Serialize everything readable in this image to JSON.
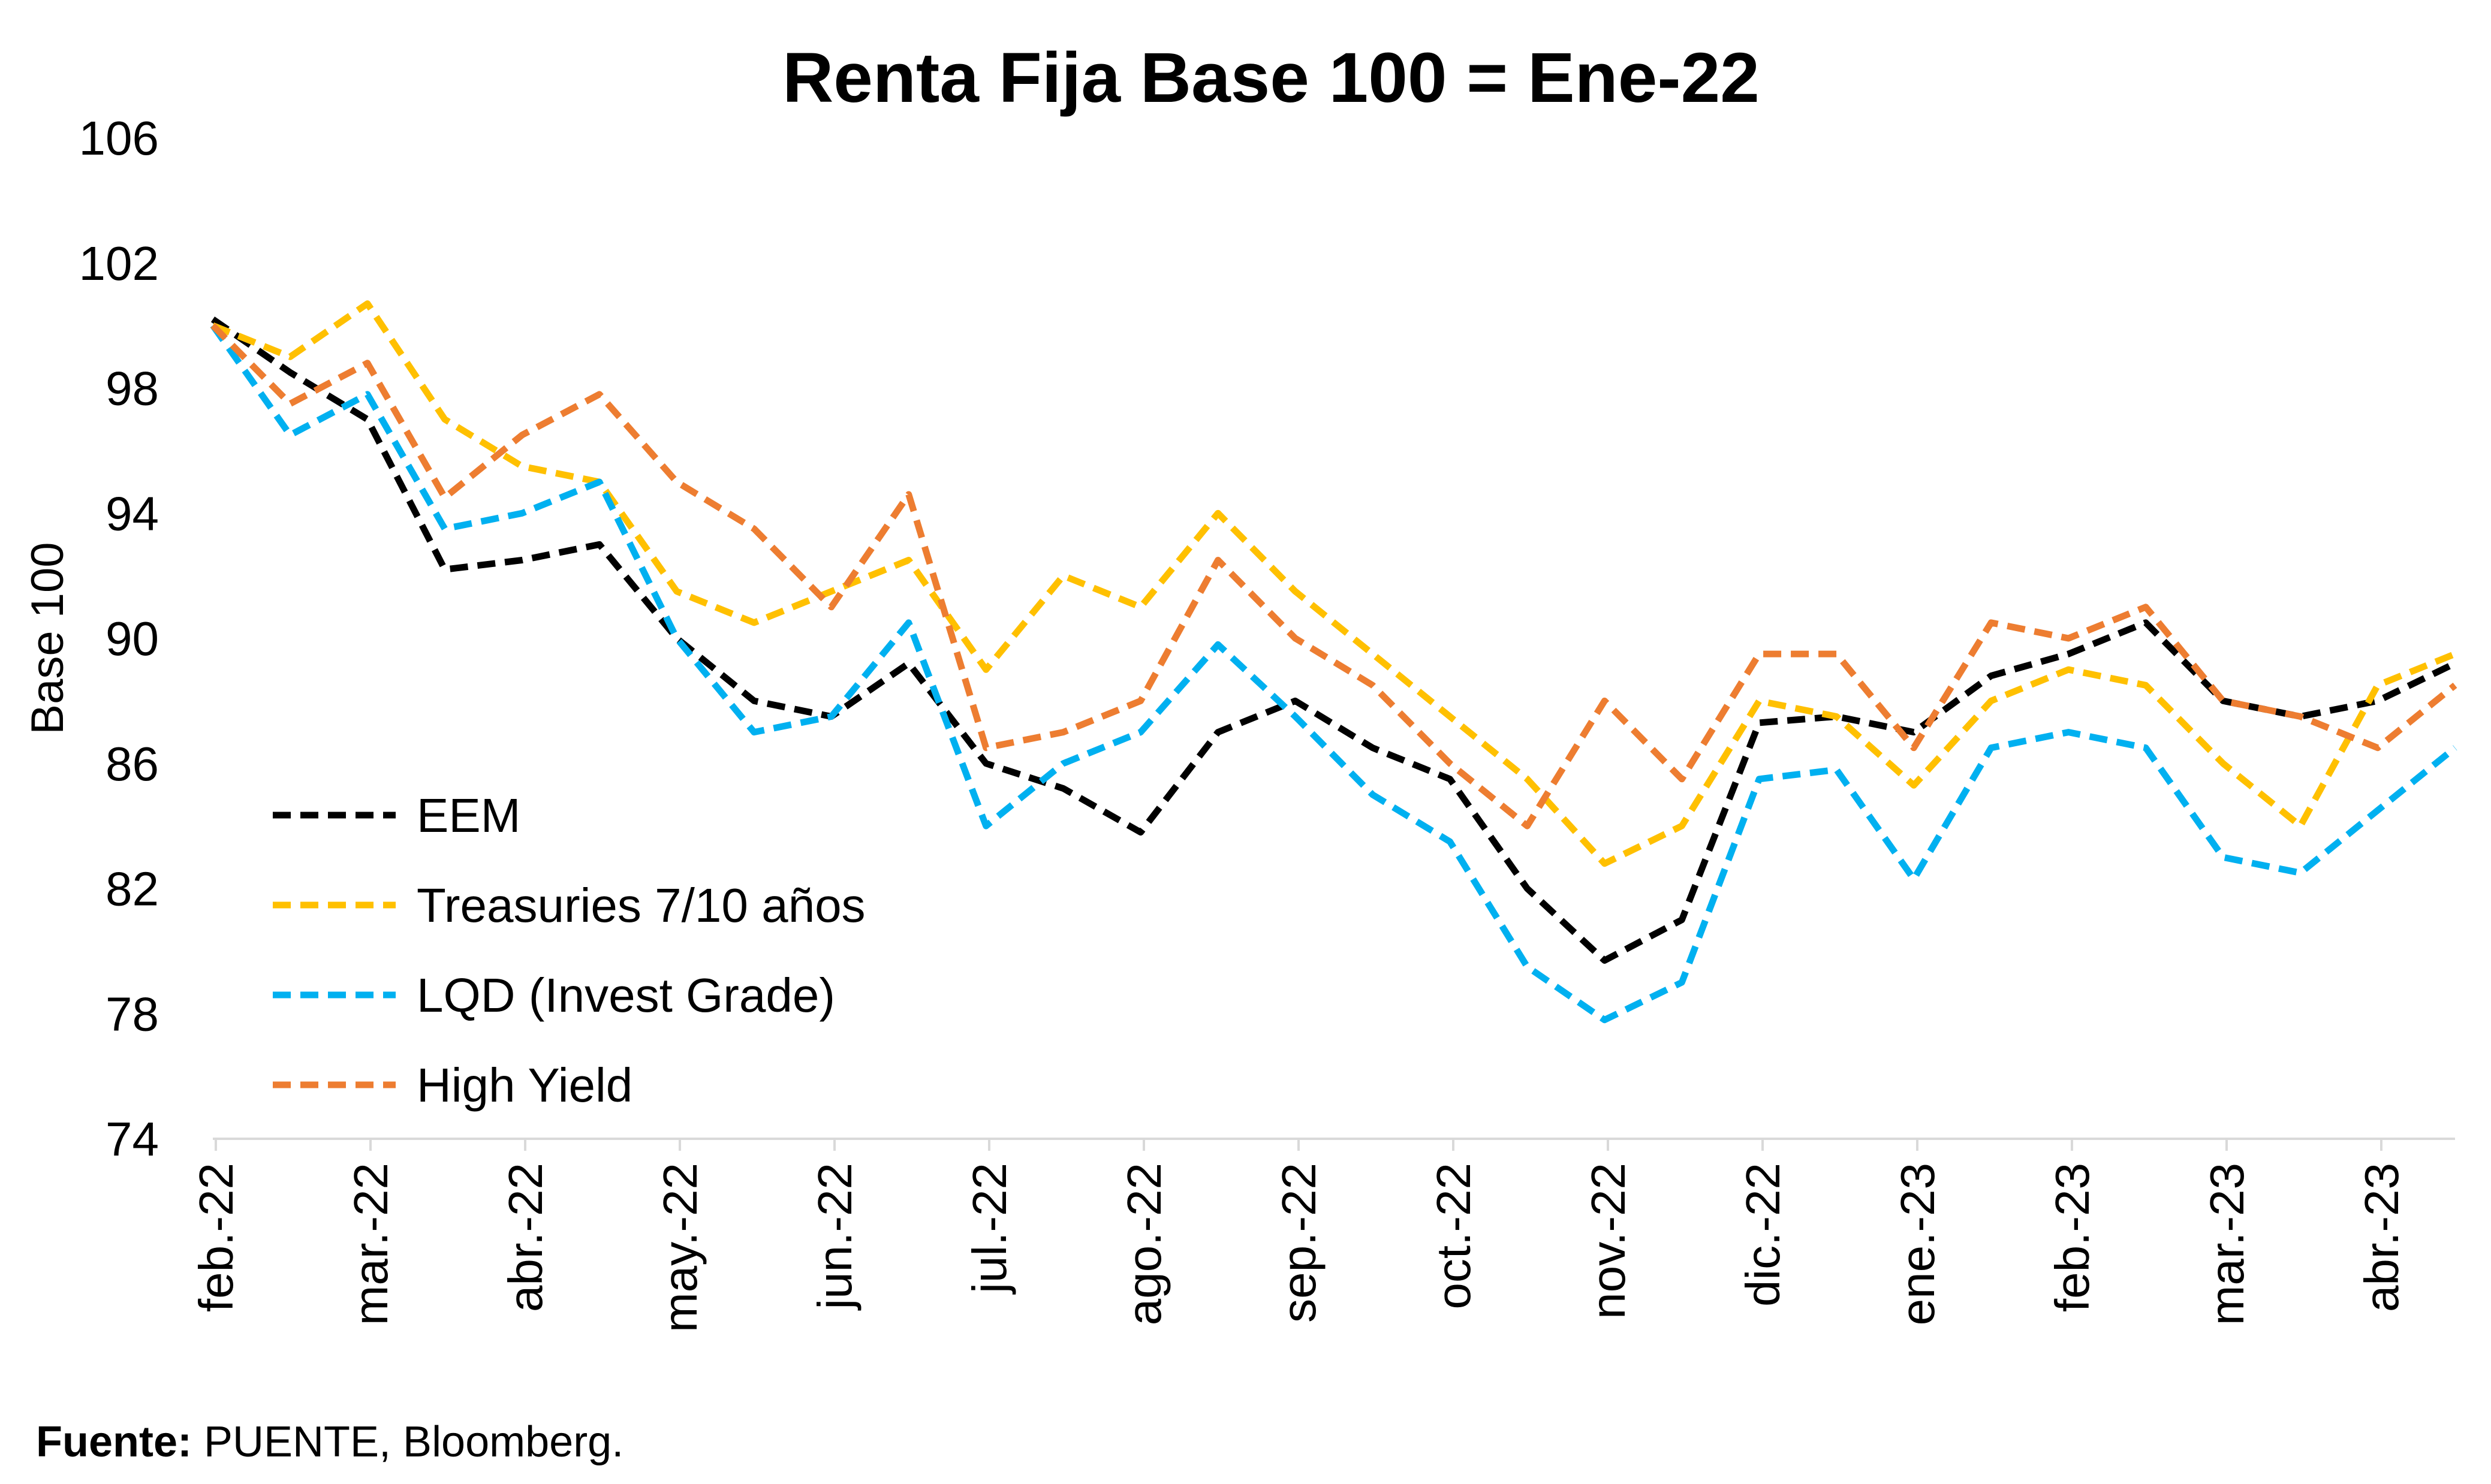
{
  "chart_data": {
    "type": "line",
    "title": "Renta Fija Base 100 = Ene-22",
    "ylabel": "Base 100",
    "xlabel": "",
    "ylim": [
      74,
      106
    ],
    "yticks": [
      "74",
      "78",
      "82",
      "86",
      "90",
      "94",
      "98",
      "102",
      "106"
    ],
    "x_ticks": [
      "feb.-22",
      "mar.-22",
      "abr.-22",
      "may.-22",
      "jun.-22",
      "jul.-22",
      "ago.-22",
      "sep.-22",
      "oct.-22",
      "nov.-22",
      "dic.-22",
      "ene.-23",
      "feb.-23",
      "mar.-23",
      "abr.-23"
    ],
    "x": [
      "feb.-22",
      "feb.-22 (mid)",
      "mar.-22",
      "mar.-22 (mid)",
      "abr.-22",
      "abr.-22 (mid)",
      "may.-22",
      "may.-22 (mid)",
      "jun.-22",
      "jun.-22 (mid)",
      "jul.-22",
      "jul.-22 (mid)",
      "ago.-22",
      "ago.-22 (mid)",
      "sep.-22",
      "sep.-22 (mid)",
      "oct.-22",
      "oct.-22 (mid)",
      "nov.-22",
      "nov.-22 (mid)",
      "dic.-22",
      "dic.-22 (mid)",
      "ene.-23",
      "ene.-23 (mid)",
      "feb.-23",
      "feb.-23 (mid)",
      "mar.-23",
      "mar.-23 (mid)",
      "abr.-23",
      "abr.-23 (end)"
    ],
    "grid": false,
    "legend_position": "bottom-left",
    "series": [
      {
        "name": "EEM",
        "color": "#000000",
        "values": [
          100.2,
          98.5,
          97.0,
          92.2,
          92.5,
          93.0,
          90.0,
          88.0,
          87.5,
          89.2,
          86.0,
          85.2,
          83.8,
          87.0,
          88.0,
          86.5,
          85.5,
          82.0,
          79.7,
          81.0,
          87.3,
          87.5,
          87.0,
          88.8,
          89.5,
          90.5,
          88.0,
          87.5,
          88.0,
          89.2
        ]
      },
      {
        "name": "Treasuries 7/10 años",
        "color": "#FFC000",
        "values": [
          100.0,
          99.0,
          100.7,
          97.0,
          95.5,
          95.0,
          91.5,
          90.5,
          91.5,
          92.5,
          89.0,
          92.0,
          91.0,
          94.0,
          91.5,
          89.5,
          87.5,
          85.5,
          82.8,
          84.0,
          88.0,
          87.5,
          85.3,
          88.0,
          89.0,
          88.5,
          86.0,
          84.0,
          88.5,
          89.5
        ]
      },
      {
        "name": "LQD (Invest Grade)",
        "color": "#00B0F0",
        "values": [
          100.0,
          96.5,
          97.8,
          93.5,
          94.0,
          95.0,
          90.0,
          87.0,
          87.5,
          90.5,
          84.0,
          86.0,
          87.0,
          89.8,
          87.5,
          85.0,
          83.5,
          79.5,
          77.8,
          79.0,
          85.5,
          85.8,
          82.3,
          86.5,
          87.0,
          86.5,
          83.0,
          82.5,
          84.5,
          86.5
        ]
      },
      {
        "name": "High Yield",
        "color": "#ED7D31",
        "values": [
          100.0,
          97.5,
          98.8,
          94.5,
          96.5,
          97.8,
          95.0,
          93.5,
          91.0,
          94.6,
          86.5,
          87.0,
          88.0,
          92.5,
          90.0,
          88.5,
          86.0,
          84.0,
          88.0,
          85.5,
          89.5,
          89.5,
          86.5,
          90.5,
          90.0,
          91.0,
          88.0,
          87.5,
          86.5,
          88.5
        ]
      }
    ],
    "source_label": "Fuente:",
    "source_text": " PUENTE, Bloomberg."
  }
}
